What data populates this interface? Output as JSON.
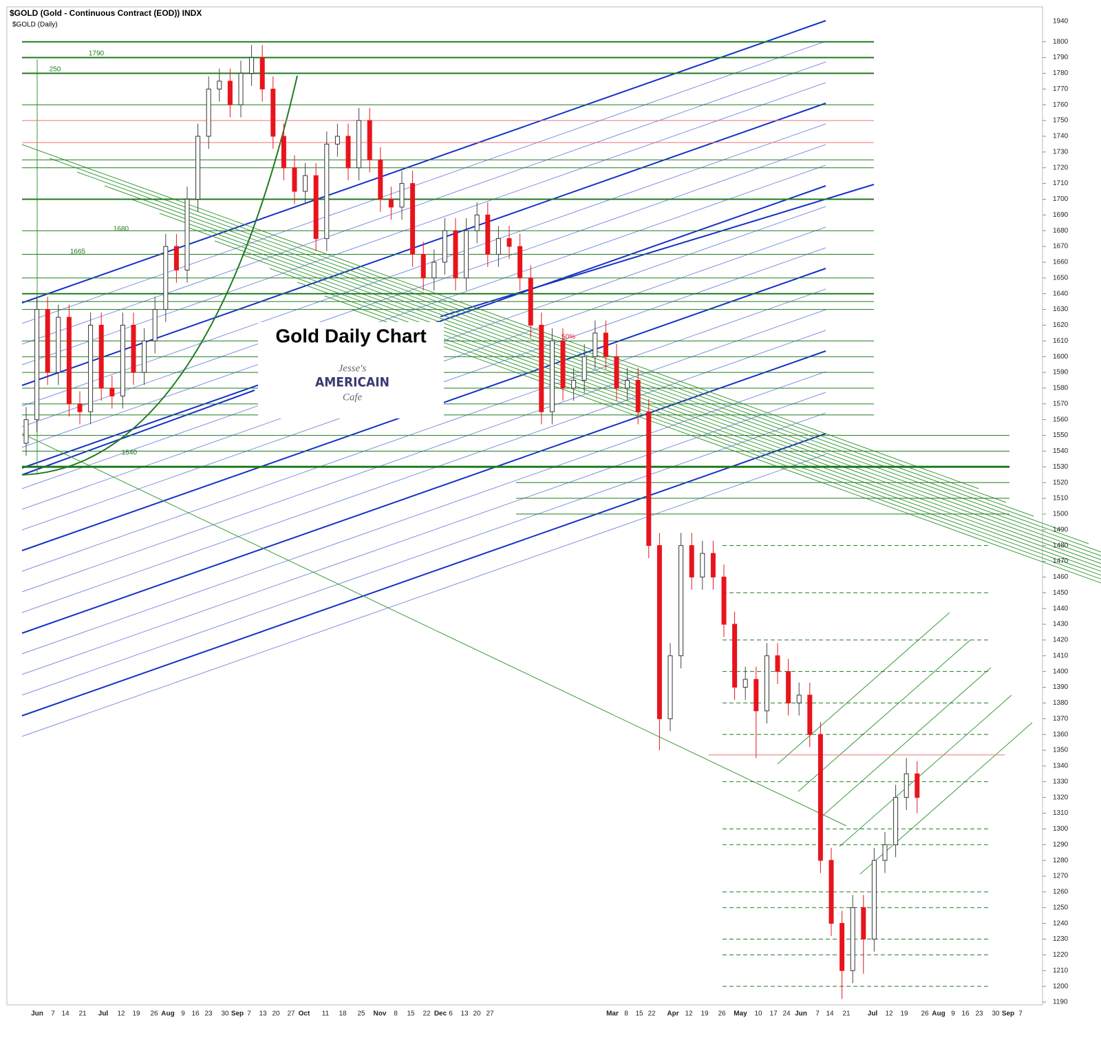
{
  "chart_data": {
    "type": "candlestick",
    "header": "$GOLD (Gold - Continuous Contract (EOD)) INDX",
    "subheader": "$GOLD (Daily)",
    "title": "Gold Daily Chart",
    "logo": {
      "line1": "Jesse's",
      "line2": "AMERICAIN",
      "line3": "Cafe"
    },
    "annotations": [
      "1790",
      "250",
      "1680",
      "1665",
      "1540",
      "50%"
    ],
    "axis_top_label": "1940",
    "ylim": [
      1190,
      1813
    ],
    "yticks": [
      1190,
      1200,
      1210,
      1220,
      1230,
      1240,
      1250,
      1260,
      1270,
      1280,
      1290,
      1300,
      1310,
      1320,
      1330,
      1340,
      1350,
      1360,
      1370,
      1380,
      1390,
      1400,
      1410,
      1420,
      1430,
      1440,
      1450,
      1460,
      1470,
      1480,
      1490,
      1500,
      1510,
      1520,
      1530,
      1540,
      1550,
      1560,
      1570,
      1580,
      1590,
      1600,
      1610,
      1620,
      1630,
      1640,
      1650,
      1660,
      1670,
      1680,
      1690,
      1700,
      1710,
      1720,
      1730,
      1740,
      1750,
      1760,
      1770,
      1780,
      1790,
      1800
    ],
    "x_labels": [
      "Jun",
      "7",
      "14",
      "21",
      "Jul",
      "12",
      "19",
      "26",
      "Aug",
      "9",
      "16",
      "23",
      "30",
      "Sep",
      "7",
      "13",
      "20",
      "27",
      "Oct",
      "11",
      "18",
      "25",
      "Nov",
      "8",
      "15",
      "22",
      "Dec",
      "6",
      "13",
      "20",
      "27",
      "Mar",
      "8",
      "15",
      "22",
      "Apr",
      "12",
      "19",
      "26",
      "May",
      "10",
      "17",
      "24",
      "Jun",
      "7",
      "14",
      "21",
      "Jul",
      "12",
      "19",
      "26",
      "Aug",
      "9",
      "16",
      "23",
      "30",
      "Sep",
      "7"
    ],
    "up_color": "#ffffff",
    "down_color": "#e8141c",
    "level_color": "#1e7a1e",
    "red_level_color": "#f07070",
    "green_levels": [
      1800,
      1790,
      1780,
      1760,
      1725,
      1720,
      1700,
      1680,
      1665,
      1650,
      1640,
      1635,
      1630,
      1610,
      1600,
      1590,
      1580,
      1570,
      1563,
      1550,
      1540,
      1530,
      1520,
      1510,
      1500,
      1480,
      1450,
      1420,
      1400,
      1380,
      1360,
      1330,
      1300,
      1290,
      1260,
      1250,
      1230,
      1220,
      1200
    ],
    "red_levels": [
      1750,
      1736,
      1347
    ],
    "open": [
      1545,
      1560,
      1630,
      1590,
      1625,
      1570,
      1565,
      1620,
      1580,
      1575,
      1620,
      1590,
      1610,
      1630,
      1670,
      1655,
      1700,
      1740,
      1770,
      1775,
      1760,
      1780,
      1790,
      1770,
      1740,
      1720,
      1705,
      1715,
      1675,
      1735,
      1740,
      1720,
      1750,
      1725,
      1700,
      1695,
      1710,
      1665,
      1650,
      1660,
      1680,
      1650,
      1680,
      1690,
      1665,
      1675,
      1670,
      1650,
      1620,
      1565,
      1610,
      1580,
      1585,
      1600,
      1615,
      1600,
      1580,
      1585,
      1565,
      1480,
      1370,
      1410,
      1480,
      1460,
      1475,
      1460,
      1430,
      1390,
      1395,
      1375,
      1410,
      1400,
      1380,
      1385,
      1360,
      1280,
      1240,
      1210,
      1250,
      1230,
      1280,
      1290,
      1320,
      1335
    ],
    "high": [
      1568,
      1638,
      1638,
      1633,
      1633,
      1578,
      1628,
      1628,
      1588,
      1628,
      1628,
      1618,
      1638,
      1678,
      1678,
      1708,
      1748,
      1778,
      1783,
      1783,
      1788,
      1798,
      1798,
      1778,
      1748,
      1728,
      1723,
      1723,
      1743,
      1748,
      1748,
      1758,
      1758,
      1733,
      1708,
      1718,
      1718,
      1673,
      1668,
      1688,
      1688,
      1688,
      1698,
      1698,
      1683,
      1683,
      1678,
      1658,
      1628,
      1618,
      1618,
      1593,
      1608,
      1623,
      1623,
      1608,
      1593,
      1593,
      1573,
      1488,
      1418,
      1488,
      1488,
      1483,
      1483,
      1468,
      1438,
      1403,
      1403,
      1418,
      1418,
      1408,
      1393,
      1393,
      1368,
      1288,
      1248,
      1258,
      1258,
      1288,
      1298,
      1328,
      1345,
      1343
    ],
    "low": [
      1537,
      1552,
      1582,
      1582,
      1562,
      1557,
      1557,
      1572,
      1567,
      1567,
      1582,
      1582,
      1602,
      1622,
      1647,
      1647,
      1692,
      1732,
      1762,
      1752,
      1752,
      1772,
      1762,
      1732,
      1712,
      1697,
      1697,
      1667,
      1667,
      1727,
      1712,
      1712,
      1717,
      1692,
      1687,
      1687,
      1657,
      1642,
      1642,
      1652,
      1642,
      1642,
      1672,
      1657,
      1657,
      1662,
      1642,
      1612,
      1557,
      1557,
      1572,
      1572,
      1577,
      1592,
      1592,
      1572,
      1572,
      1557,
      1472,
      1350,
      1362,
      1402,
      1452,
      1452,
      1452,
      1422,
      1382,
      1382,
      1345,
      1367,
      1392,
      1372,
      1372,
      1352,
      1272,
      1232,
      1192,
      1202,
      1208,
      1222,
      1272,
      1282,
      1312,
      1310
    ],
    "close": [
      1560,
      1630,
      1590,
      1625,
      1570,
      1565,
      1620,
      1580,
      1575,
      1620,
      1590,
      1610,
      1630,
      1670,
      1655,
      1700,
      1740,
      1770,
      1775,
      1760,
      1780,
      1790,
      1770,
      1740,
      1720,
      1705,
      1715,
      1675,
      1735,
      1740,
      1720,
      1750,
      1725,
      1700,
      1695,
      1710,
      1665,
      1650,
      1660,
      1680,
      1650,
      1680,
      1690,
      1665,
      1675,
      1670,
      1650,
      1620,
      1565,
      1610,
      1580,
      1585,
      1600,
      1615,
      1600,
      1580,
      1585,
      1565,
      1480,
      1370,
      1410,
      1480,
      1460,
      1475,
      1460,
      1430,
      1390,
      1395,
      1375,
      1410,
      1400,
      1380,
      1385,
      1360,
      1280,
      1240,
      1210,
      1250,
      1230,
      1280,
      1290,
      1320,
      1335,
      1320
    ]
  }
}
